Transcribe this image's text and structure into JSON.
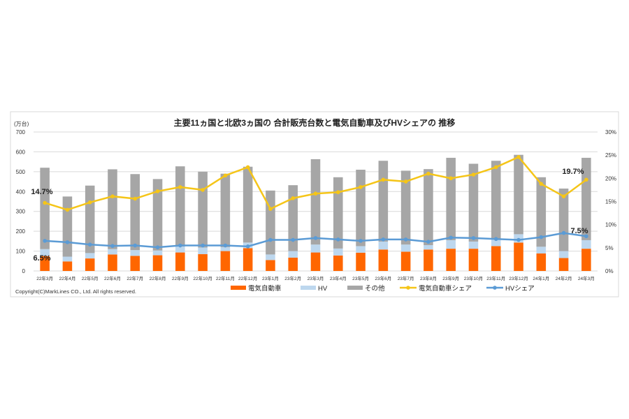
{
  "chart_data": {
    "type": "bar+line",
    "title": "主要11ヵ国と北欧3ヵ国の 合計販売台数と電気自動車及びHVシェアの 推移",
    "ylabel": "(万台)",
    "ylim": [
      0,
      700
    ],
    "yticks": [
      "0",
      "100",
      "200",
      "300",
      "400",
      "500",
      "600",
      "700"
    ],
    "y2lim": [
      0,
      30
    ],
    "y2ticks": [
      "0%",
      "5%",
      "10%",
      "15%",
      "20%",
      "25%",
      "30%"
    ],
    "grid": true,
    "legend_position": "bottom",
    "categories": [
      "22年3月",
      "22年4月",
      "22年5月",
      "22年6月",
      "22年7月",
      "22年8月",
      "22年9月",
      "22年10月",
      "22年11月",
      "22年12月",
      "23年1月",
      "23年2月",
      "23年3月",
      "23年4月",
      "23年5月",
      "23年6月",
      "23年7月",
      "23年8月",
      "23年9月",
      "23年10月",
      "23年11月",
      "23年12月",
      "24年1月",
      "24年2月",
      "24年3月"
    ],
    "bar_series": [
      {
        "name": "電気自動車",
        "color": "#ff6600",
        "values": [
          75,
          48,
          63,
          83,
          76,
          79,
          93,
          85,
          100,
          115,
          55,
          67,
          93,
          78,
          92,
          108,
          97,
          108,
          112,
          112,
          125,
          143,
          88,
          65,
          112
        ]
      },
      {
        "name": "HV",
        "color": "#bdd7ee",
        "values": [
          35,
          24,
          27,
          27,
          29,
          24,
          30,
          33,
          20,
          28,
          28,
          33,
          40,
          35,
          33,
          40,
          36,
          22,
          43,
          36,
          35,
          42,
          34,
          35,
          43
        ]
      },
      {
        "name": "その他",
        "color": "#a6a6a6",
        "values": [
          410,
          303,
          340,
          402,
          383,
          360,
          404,
          382,
          370,
          382,
          322,
          332,
          430,
          359,
          385,
          407,
          372,
          383,
          415,
          392,
          395,
          400,
          350,
          315,
          415
        ]
      }
    ],
    "line_series": [
      {
        "name": "電気自動車シェア",
        "color": "#f5c518",
        "axis": "right",
        "values": [
          14.7,
          13.2,
          14.8,
          16.1,
          15.6,
          17.2,
          18.1,
          17.5,
          20.6,
          22.4,
          13.4,
          15.7,
          16.7,
          17.0,
          18.1,
          19.7,
          19.3,
          21.0,
          20.0,
          20.8,
          22.4,
          24.6,
          18.8,
          16.1,
          19.7
        ]
      },
      {
        "name": "HVシェア",
        "color": "#5b9bd5",
        "axis": "right",
        "values": [
          6.5,
          6.2,
          5.7,
          5.4,
          5.5,
          5.1,
          5.5,
          5.5,
          5.5,
          5.3,
          6.7,
          6.7,
          7.1,
          6.8,
          6.5,
          6.8,
          6.8,
          6.3,
          7.2,
          7.1,
          6.9,
          6.7,
          7.3,
          8.2,
          7.5
        ]
      }
    ],
    "annotations": [
      "14.7%",
      "6.5%",
      "19.7%",
      "7.5%"
    ]
  },
  "copyright": "Copyright(C)MarkLines CO., Ltd. All rights reserved."
}
